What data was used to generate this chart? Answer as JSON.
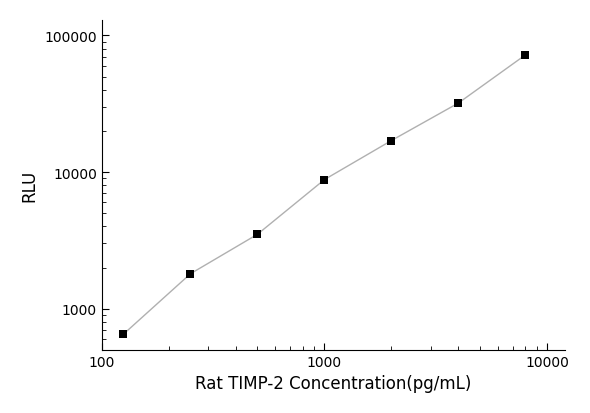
{
  "x_values": [
    125,
    250,
    500,
    1000,
    2000,
    4000,
    8000
  ],
  "y_values": [
    650,
    1800,
    3500,
    8800,
    17000,
    32000,
    72000
  ],
  "xlabel": "Rat TIMP-2 Concentration(pg/mL)",
  "ylabel": "RLU",
  "xlim": [
    100,
    12000
  ],
  "ylim": [
    500,
    130000
  ],
  "line_color": "#b0b0b0",
  "marker_color": "#000000",
  "marker_style": "s",
  "marker_size": 6,
  "line_width": 1.0,
  "background_color": "#ffffff",
  "xlabel_fontsize": 12,
  "ylabel_fontsize": 12,
  "tick_fontsize": 10,
  "yticks": [
    1000,
    10000,
    100000
  ],
  "xticks": [
    100,
    1000,
    10000
  ]
}
